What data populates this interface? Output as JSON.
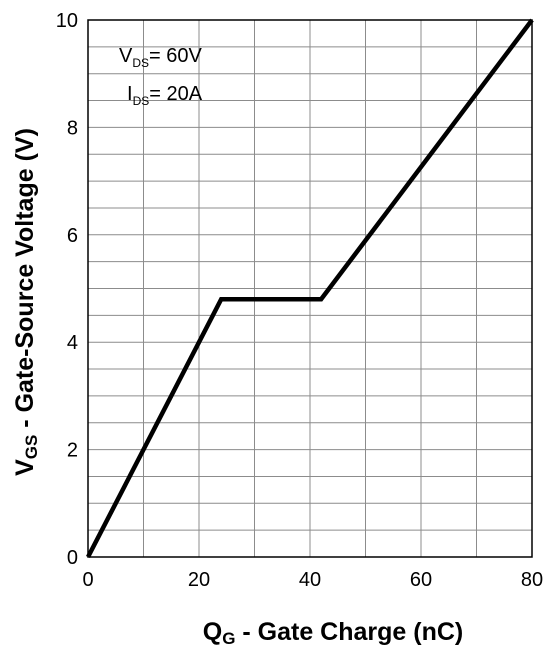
{
  "chart_data": {
    "type": "line",
    "xlabel": {
      "main": "Q",
      "sub": "G",
      "rest": " - Gate Charge (nC)"
    },
    "ylabel": {
      "main": "V",
      "sub": "GS",
      "rest": " - Gate-Source Voltage (V)"
    },
    "xlim": [
      0,
      80
    ],
    "ylim": [
      0,
      10
    ],
    "x_ticks": [
      0,
      20,
      40,
      60,
      80
    ],
    "y_ticks": [
      0,
      2,
      4,
      6,
      8,
      10
    ],
    "x_minor_step": 10,
    "y_minor_step": 1,
    "grid": true,
    "series": [
      {
        "color": "#000000",
        "x": [
          0,
          24,
          42,
          80
        ],
        "y": [
          0,
          4.8,
          4.8,
          10
        ]
      }
    ],
    "annotations": [
      {
        "main": "V",
        "sub": "DS",
        "rest": "= 60V"
      },
      {
        "main": "I",
        "sub": "DS",
        "rest": "= 20A"
      }
    ]
  }
}
